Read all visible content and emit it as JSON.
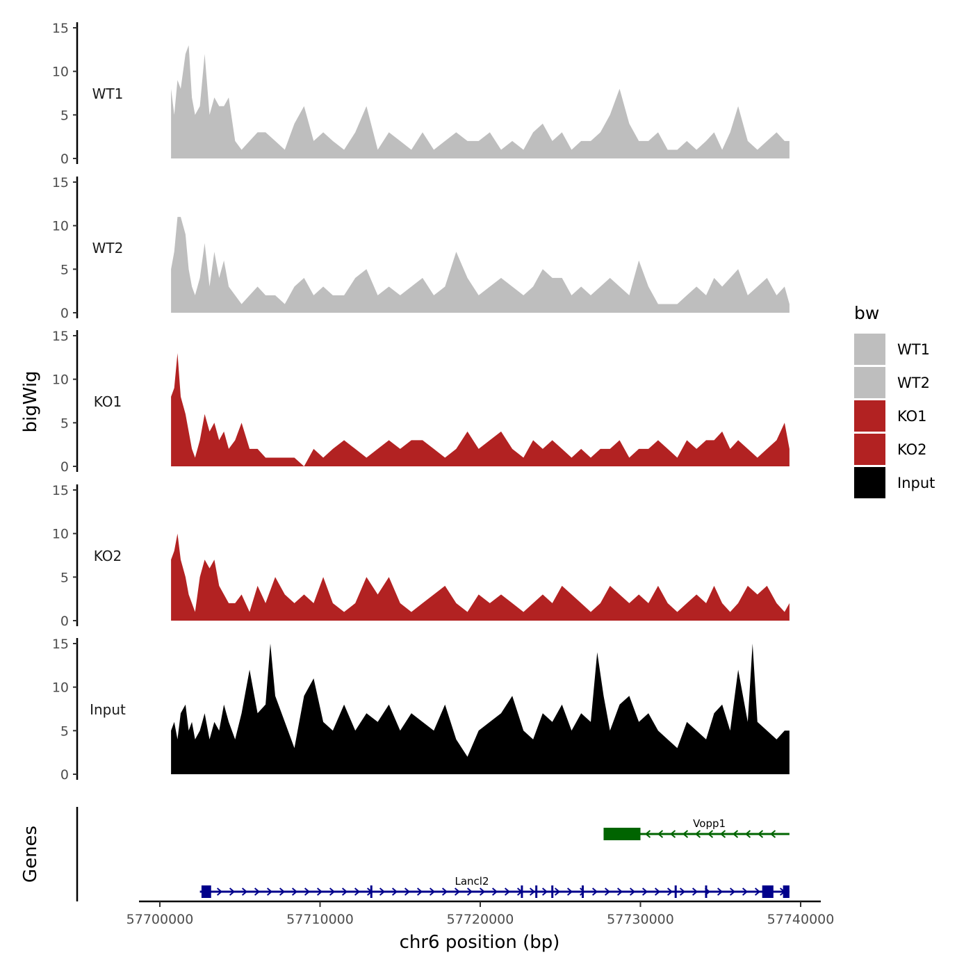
{
  "chart_data": {
    "type": "area",
    "x_unit": "bp",
    "xlim": [
      57699000,
      57740500
    ],
    "x_ticks": [
      57700000,
      57710000,
      57720000,
      57730000,
      57740000
    ],
    "x_tick_labels": [
      "57700000",
      "57710000",
      "57720000",
      "57730000",
      "57740000"
    ],
    "xlabel": "chr6 position (bp)",
    "ylabel": "bigWig",
    "ylim": [
      0,
      15
    ],
    "y_ticks": [
      0,
      5,
      10,
      15
    ],
    "y_tick_labels": [
      "0",
      "5",
      "10",
      "15"
    ],
    "genes_axis_label": "Genes",
    "legend": {
      "title": "bw",
      "entries": [
        {
          "label": "WT1",
          "color": "#bebebe"
        },
        {
          "label": "WT2",
          "color": "#bebebe"
        },
        {
          "label": "KO1",
          "color": "#b22222"
        },
        {
          "label": "KO2",
          "color": "#b22222"
        },
        {
          "label": "Input",
          "color": "#000000"
        }
      ]
    },
    "series": [
      {
        "name": "WT1",
        "color": "#bebebe",
        "x": [
          57700700,
          57700900,
          57701100,
          57701300,
          57701600,
          57701800,
          57702000,
          57702200,
          57702500,
          57702800,
          57703100,
          57703400,
          57703700,
          57704000,
          57704300,
          57704700,
          57705100,
          57705600,
          57706100,
          57706600,
          57707200,
          57707800,
          57708400,
          57709000,
          57709600,
          57710200,
          57710800,
          57711500,
          57712200,
          57712900,
          57713600,
          57714300,
          57715000,
          57715700,
          57716400,
          57717100,
          57717800,
          57718500,
          57719200,
          57719900,
          57720600,
          57721300,
          57722000,
          57722700,
          57723300,
          57723900,
          57724500,
          57725100,
          57725700,
          57726300,
          57726900,
          57727500,
          57728100,
          57728700,
          57729300,
          57729900,
          57730500,
          57731100,
          57731700,
          57732300,
          57732900,
          57733500,
          57734100,
          57734600,
          57735100,
          57735600,
          57736100,
          57736700,
          57737300,
          57737900,
          57738500,
          57739000,
          57739300
        ],
        "values": [
          8,
          5,
          9,
          8,
          12,
          13,
          7,
          5,
          6,
          12,
          5,
          7,
          6,
          6,
          7,
          2,
          1,
          2,
          3,
          3,
          2,
          1,
          4,
          6,
          2,
          3,
          2,
          1,
          3,
          6,
          1,
          3,
          2,
          1,
          3,
          1,
          2,
          3,
          2,
          2,
          3,
          1,
          2,
          1,
          3,
          4,
          2,
          3,
          1,
          2,
          2,
          3,
          5,
          8,
          4,
          2,
          2,
          3,
          1,
          1,
          2,
          1,
          2,
          3,
          1,
          3,
          6,
          2,
          1,
          2,
          3,
          2,
          2
        ]
      },
      {
        "name": "WT2",
        "color": "#bebebe",
        "x": [
          57700700,
          57700900,
          57701100,
          57701300,
          57701600,
          57701800,
          57702000,
          57702200,
          57702500,
          57702800,
          57703100,
          57703400,
          57703700,
          57704000,
          57704300,
          57704700,
          57705100,
          57705600,
          57706100,
          57706600,
          57707200,
          57707800,
          57708400,
          57709000,
          57709600,
          57710200,
          57710800,
          57711500,
          57712200,
          57712900,
          57713600,
          57714300,
          57715000,
          57715700,
          57716400,
          57717100,
          57717800,
          57718500,
          57719200,
          57719900,
          57720600,
          57721300,
          57722000,
          57722700,
          57723300,
          57723900,
          57724500,
          57725100,
          57725700,
          57726300,
          57726900,
          57727500,
          57728100,
          57728700,
          57729300,
          57729900,
          57730500,
          57731100,
          57731700,
          57732300,
          57732900,
          57733500,
          57734100,
          57734600,
          57735100,
          57735600,
          57736100,
          57736700,
          57737300,
          57737900,
          57738500,
          57739000,
          57739300
        ],
        "values": [
          5,
          7,
          11,
          11,
          9,
          5,
          3,
          2,
          4,
          8,
          3,
          7,
          4,
          6,
          3,
          2,
          1,
          2,
          3,
          2,
          2,
          1,
          3,
          4,
          2,
          3,
          2,
          2,
          4,
          5,
          2,
          3,
          2,
          3,
          4,
          2,
          3,
          7,
          4,
          2,
          3,
          4,
          3,
          2,
          3,
          5,
          4,
          4,
          2,
          3,
          2,
          3,
          4,
          3,
          2,
          6,
          3,
          1,
          1,
          1,
          2,
          3,
          2,
          4,
          3,
          4,
          5,
          2,
          3,
          4,
          2,
          3,
          1
        ]
      },
      {
        "name": "KO1",
        "color": "#b22222",
        "x": [
          57700700,
          57700900,
          57701100,
          57701300,
          57701600,
          57701800,
          57702000,
          57702200,
          57702500,
          57702800,
          57703100,
          57703400,
          57703700,
          57704000,
          57704300,
          57704700,
          57705100,
          57705600,
          57706100,
          57706600,
          57707200,
          57707800,
          57708400,
          57709000,
          57709600,
          57710200,
          57710800,
          57711500,
          57712200,
          57712900,
          57713600,
          57714300,
          57715000,
          57715700,
          57716400,
          57717100,
          57717800,
          57718500,
          57719200,
          57719900,
          57720600,
          57721300,
          57722000,
          57722700,
          57723300,
          57723900,
          57724500,
          57725100,
          57725700,
          57726300,
          57726900,
          57727500,
          57728100,
          57728700,
          57729300,
          57729900,
          57730500,
          57731100,
          57731700,
          57732300,
          57732900,
          57733500,
          57734100,
          57734600,
          57735100,
          57735600,
          57736100,
          57736700,
          57737300,
          57737900,
          57738500,
          57739000,
          57739300
        ],
        "values": [
          8,
          9,
          13,
          8,
          6,
          4,
          2,
          1,
          3,
          6,
          4,
          5,
          3,
          4,
          2,
          3,
          5,
          2,
          2,
          1,
          1,
          1,
          1,
          0,
          2,
          1,
          2,
          3,
          2,
          1,
          2,
          3,
          2,
          3,
          3,
          2,
          1,
          2,
          4,
          2,
          3,
          4,
          2,
          1,
          3,
          2,
          3,
          2,
          1,
          2,
          1,
          2,
          2,
          3,
          1,
          2,
          2,
          3,
          2,
          1,
          3,
          2,
          3,
          3,
          4,
          2,
          3,
          2,
          1,
          2,
          3,
          5,
          2
        ]
      },
      {
        "name": "KO2",
        "color": "#b22222",
        "x": [
          57700700,
          57700900,
          57701100,
          57701300,
          57701600,
          57701800,
          57702000,
          57702200,
          57702500,
          57702800,
          57703100,
          57703400,
          57703700,
          57704000,
          57704300,
          57704700,
          57705100,
          57705600,
          57706100,
          57706600,
          57707200,
          57707800,
          57708400,
          57709000,
          57709600,
          57710200,
          57710800,
          57711500,
          57712200,
          57712900,
          57713600,
          57714300,
          57715000,
          57715700,
          57716400,
          57717100,
          57717800,
          57718500,
          57719200,
          57719900,
          57720600,
          57721300,
          57722000,
          57722700,
          57723300,
          57723900,
          57724500,
          57725100,
          57725700,
          57726300,
          57726900,
          57727500,
          57728100,
          57728700,
          57729300,
          57729900,
          57730500,
          57731100,
          57731700,
          57732300,
          57732900,
          57733500,
          57734100,
          57734600,
          57735100,
          57735600,
          57736100,
          57736700,
          57737300,
          57737900,
          57738500,
          57739000,
          57739300
        ],
        "values": [
          7,
          8,
          10,
          7,
          5,
          3,
          2,
          1,
          5,
          7,
          6,
          7,
          4,
          3,
          2,
          2,
          3,
          1,
          4,
          2,
          5,
          3,
          2,
          3,
          2,
          5,
          2,
          1,
          2,
          5,
          3,
          5,
          2,
          1,
          2,
          3,
          4,
          2,
          1,
          3,
          2,
          3,
          2,
          1,
          2,
          3,
          2,
          4,
          3,
          2,
          1,
          2,
          4,
          3,
          2,
          3,
          2,
          4,
          2,
          1,
          2,
          3,
          2,
          4,
          2,
          1,
          2,
          4,
          3,
          4,
          2,
          1,
          2
        ]
      },
      {
        "name": "Input",
        "color": "#000000",
        "x": [
          57700700,
          57700900,
          57701100,
          57701300,
          57701600,
          57701800,
          57702000,
          57702200,
          57702500,
          57702800,
          57703100,
          57703400,
          57703700,
          57704000,
          57704300,
          57704700,
          57705100,
          57705600,
          57706100,
          57706600,
          57706900,
          57707200,
          57707800,
          57708400,
          57709000,
          57709600,
          57710200,
          57710800,
          57711500,
          57712200,
          57712900,
          57713600,
          57714300,
          57715000,
          57715700,
          57716400,
          57717100,
          57717800,
          57718500,
          57719200,
          57719900,
          57720600,
          57721300,
          57722000,
          57722700,
          57723300,
          57723900,
          57724500,
          57725100,
          57725700,
          57726300,
          57726900,
          57727300,
          57727700,
          57728100,
          57728700,
          57729300,
          57729900,
          57730500,
          57731100,
          57731700,
          57732300,
          57732900,
          57733500,
          57734100,
          57734600,
          57735100,
          57735600,
          57736100,
          57736700,
          57737000,
          57737300,
          57737900,
          57738500,
          57739000,
          57739300
        ],
        "values": [
          5,
          6,
          4,
          7,
          8,
          5,
          6,
          4,
          5,
          7,
          4,
          6,
          5,
          8,
          6,
          4,
          7,
          12,
          7,
          8,
          15,
          9,
          6,
          3,
          9,
          11,
          6,
          5,
          8,
          5,
          7,
          6,
          8,
          5,
          7,
          6,
          5,
          8,
          4,
          2,
          5,
          6,
          7,
          9,
          5,
          4,
          7,
          6,
          8,
          5,
          7,
          6,
          14,
          9,
          5,
          8,
          9,
          6,
          7,
          5,
          4,
          3,
          6,
          5,
          4,
          7,
          8,
          5,
          12,
          6,
          15,
          6,
          5,
          4,
          5,
          5
        ]
      }
    ],
    "genes": [
      {
        "name": "Vopp1",
        "color": "#006400",
        "start": 57727700,
        "end": 57739300,
        "strand": "-",
        "exons": [
          [
            57727700,
            57730000
          ]
        ]
      },
      {
        "name": "Lancl2",
        "color": "#00008b",
        "start": 57702500,
        "end": 57739300,
        "strand": "+",
        "exons": [
          [
            57702600,
            57703200
          ],
          [
            57737600,
            57738300
          ],
          [
            57738900,
            57739300
          ]
        ],
        "intron_marks": [
          57713200,
          57722600,
          57723500,
          57724500,
          57726400,
          57732200,
          57734100
        ]
      }
    ]
  }
}
